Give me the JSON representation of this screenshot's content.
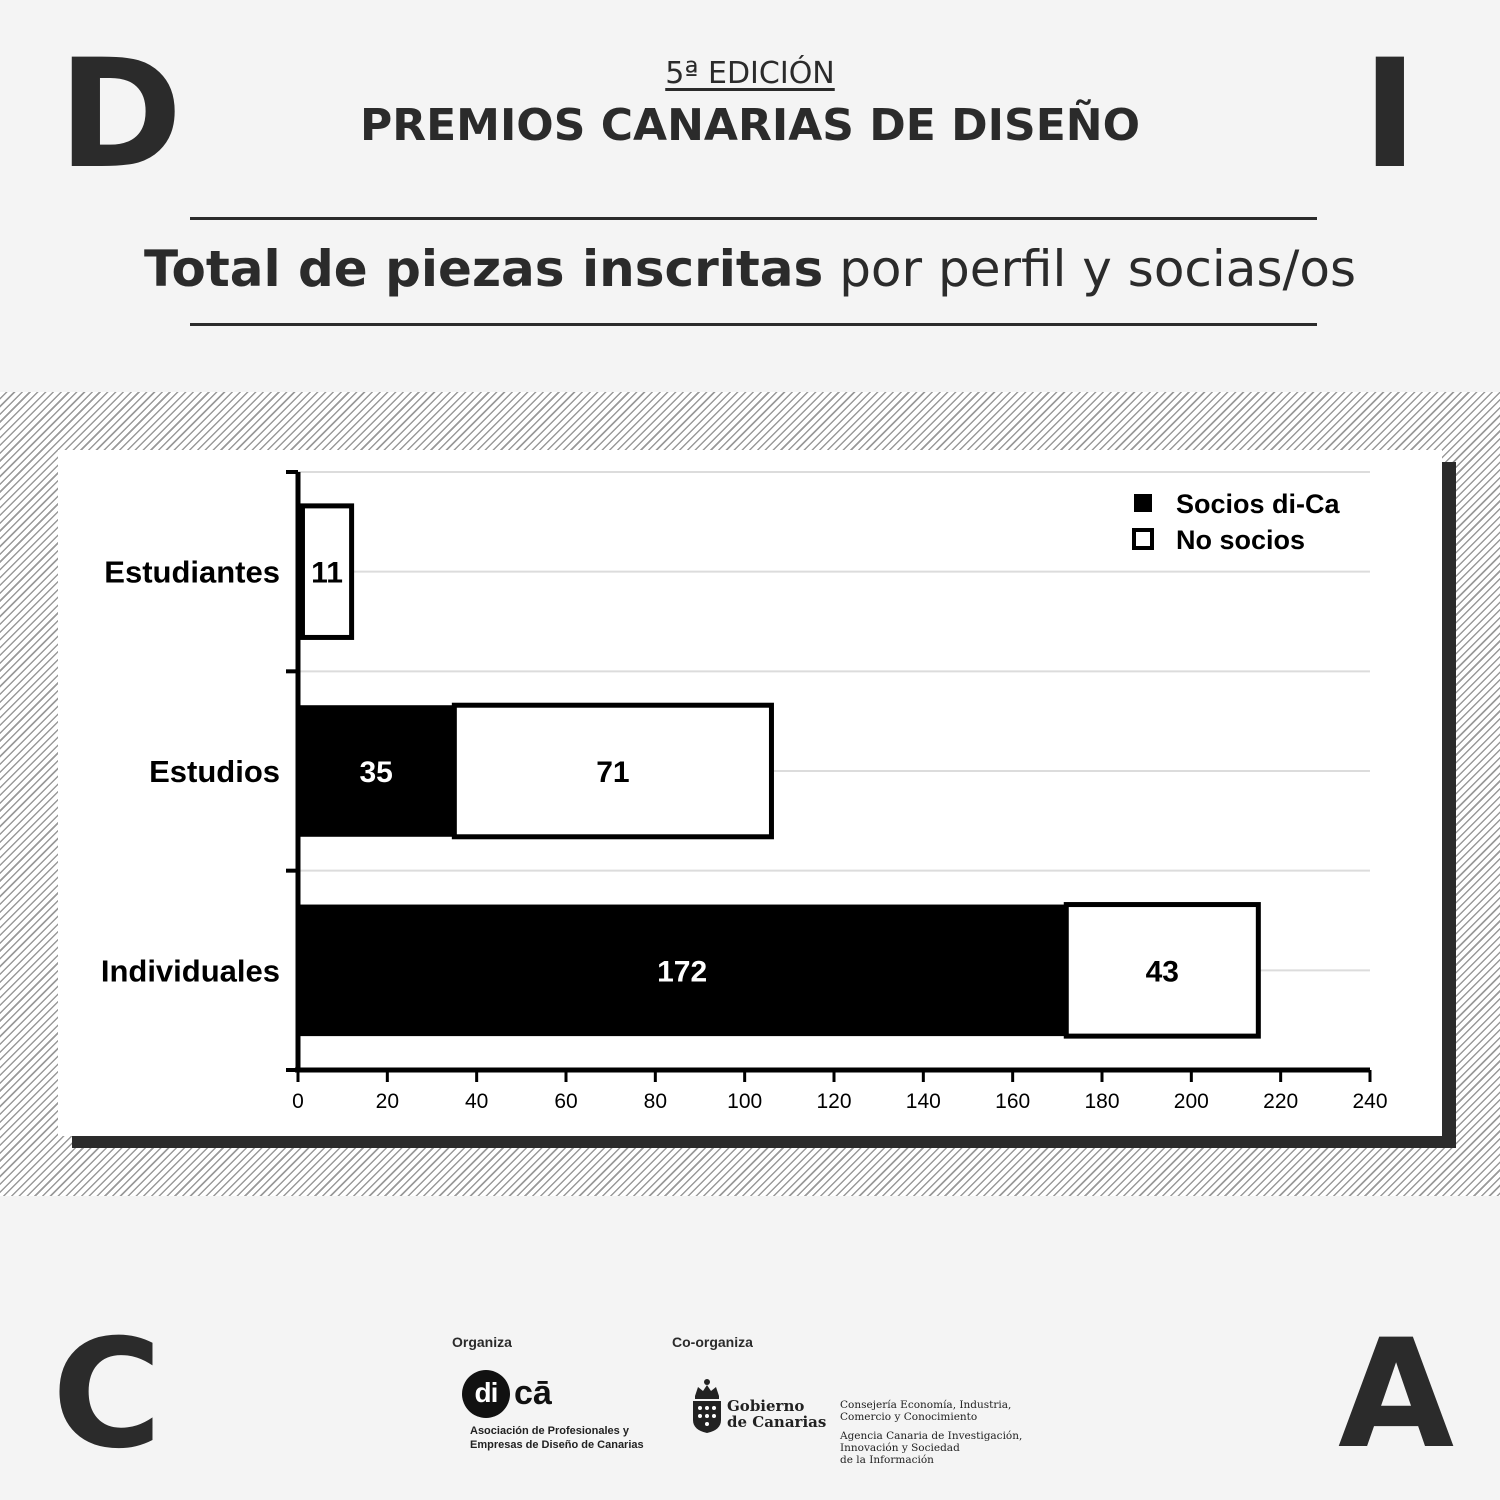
{
  "corners": {
    "top_left": "D",
    "top_right": "I",
    "bottom_left": "C",
    "bottom_right": "A"
  },
  "header": {
    "edition": "5ª EDICIÓN",
    "awards": "PREMIOS CANARIAS DE DISEÑO",
    "title_bold": "Total de piezas inscritas",
    "title_regular": " por perfil y socias/os"
  },
  "chart_data": {
    "type": "bar",
    "orientation": "horizontal",
    "stacked": true,
    "categories": [
      "Estudiantes",
      "Estudios",
      "Individuales"
    ],
    "series": [
      {
        "name": "Socios di-Ca",
        "values": [
          1,
          35,
          172
        ],
        "color": "#000000"
      },
      {
        "name": "No socios",
        "values": [
          11,
          71,
          43
        ],
        "color": "#ffffff"
      }
    ],
    "xlim": [
      0,
      240
    ],
    "xticks": [
      0,
      20,
      40,
      60,
      80,
      100,
      120,
      140,
      160,
      180,
      200,
      220,
      240
    ],
    "grid": true,
    "legend": "top-right"
  },
  "footer": {
    "organiza_label": "Organiza",
    "coorganiza_label": "Co-organiza",
    "dica_logo_di": "di",
    "dica_logo_ca": "cā",
    "association_lines": [
      "Asociación de Profesionales y",
      "Empresas de Diseño de Canarias"
    ],
    "government_lines": [
      "Gobierno",
      "de Canarias"
    ],
    "consejeria_lines": [
      "Consejería Economía, Industria,",
      "Comercio y Conocimiento"
    ],
    "agencia_lines": [
      "Agencia Canaria de Investigación,",
      "Innovación y Sociedad",
      "de la Información"
    ]
  }
}
